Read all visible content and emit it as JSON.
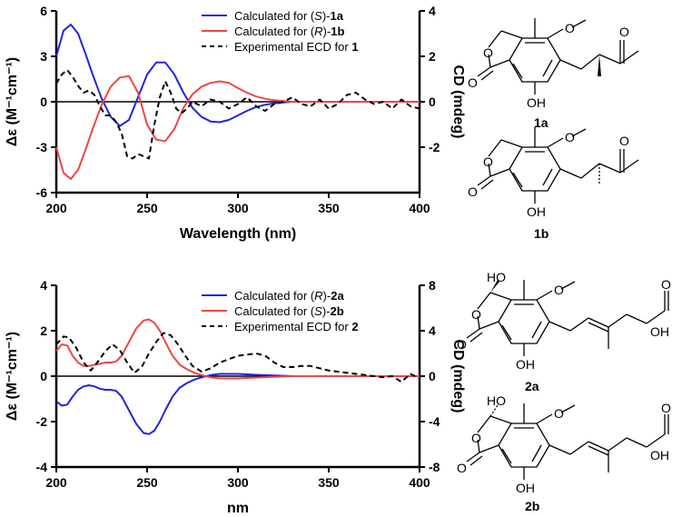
{
  "chart_data": [
    {
      "type": "line",
      "xlabel": "Wavelength  (nm)",
      "ylabel_left": "Δε (M⁻¹cm⁻¹)",
      "ylabel_right": "CD  (mdeg)",
      "xlim": [
        200,
        400
      ],
      "ylim_left": [
        -6,
        6
      ],
      "ylim_right": [
        -4,
        4
      ],
      "x_ticks": [
        200,
        250,
        300,
        350,
        400
      ],
      "y_ticks_left": [
        -6,
        -3,
        0,
        3,
        6
      ],
      "y_ticks_right": [
        -2,
        0,
        2,
        4
      ],
      "legend": {
        "placement": "top-center",
        "entries": [
          {
            "prefix": "Calculated for (",
            "italic": "S",
            "middle": ")-",
            "bold": "1a",
            "color": "#2323e0",
            "dash": "solid"
          },
          {
            "prefix": "Calculated for (",
            "italic": "R",
            "middle": ")-",
            "bold": "1b",
            "color": "#ee4545",
            "dash": "solid"
          },
          {
            "prefix": "Experimental ECD for ",
            "italic": "",
            "middle": "",
            "bold": "1",
            "color": "#000000",
            "dash": "dashed"
          }
        ]
      },
      "series": [
        {
          "name": "calc-S-1a",
          "axis": "left",
          "x": [
            200,
            204,
            208,
            212,
            216,
            220,
            225,
            230,
            235,
            240,
            245,
            250,
            255,
            260,
            265,
            270,
            275,
            280,
            285,
            290,
            295,
            300,
            305,
            310,
            315,
            320,
            325,
            330,
            335,
            340,
            350,
            360,
            370,
            380,
            390,
            400
          ],
          "y": [
            3.0,
            4.7,
            5.1,
            4.5,
            3.2,
            1.8,
            0.2,
            -1.0,
            -1.6,
            -1.2,
            0.3,
            1.8,
            2.6,
            2.6,
            1.8,
            0.6,
            -0.4,
            -1.0,
            -1.3,
            -1.35,
            -1.2,
            -0.9,
            -0.6,
            -0.35,
            -0.2,
            -0.1,
            -0.05,
            0,
            0,
            0,
            0,
            0,
            0,
            0,
            0,
            0
          ]
        },
        {
          "name": "calc-R-1b",
          "axis": "left",
          "x": [
            200,
            204,
            208,
            212,
            216,
            220,
            225,
            230,
            235,
            240,
            245,
            250,
            255,
            260,
            265,
            270,
            275,
            280,
            285,
            290,
            295,
            300,
            305,
            310,
            315,
            320,
            325,
            330,
            335,
            340,
            350,
            360,
            370,
            380,
            390,
            400
          ],
          "y": [
            -3.0,
            -4.7,
            -5.1,
            -4.5,
            -3.2,
            -1.8,
            -0.2,
            1.0,
            1.6,
            1.7,
            0.6,
            -1.5,
            -2.5,
            -2.6,
            -1.8,
            -0.4,
            0.5,
            1.0,
            1.25,
            1.35,
            1.25,
            0.9,
            0.6,
            0.35,
            0.2,
            0.1,
            0.05,
            0,
            0,
            0,
            0,
            0,
            0,
            0,
            0,
            0
          ]
        },
        {
          "name": "exp-ECD-1",
          "axis": "right",
          "x": [
            200,
            203,
            206,
            209,
            212,
            215,
            218,
            221,
            224,
            227,
            230,
            233,
            236,
            239,
            242,
            245,
            248,
            251,
            254,
            257,
            260,
            263,
            266,
            269,
            272,
            275,
            280,
            285,
            290,
            295,
            300,
            305,
            310,
            315,
            320,
            325,
            330,
            335,
            340,
            345,
            350,
            355,
            360,
            365,
            370,
            375,
            380,
            385,
            390,
            395,
            400
          ],
          "y": [
            0.8,
            1.2,
            1.4,
            1.1,
            0.7,
            0.4,
            0.5,
            0.3,
            -0.2,
            -0.6,
            -0.6,
            -0.9,
            -1.4,
            -2.4,
            -2.5,
            -2.3,
            -2.4,
            -2.5,
            -1.0,
            0.2,
            0.9,
            0.4,
            -0.3,
            -0.5,
            -0.3,
            0.0,
            -0.2,
            0.1,
            0.0,
            -0.3,
            -0.1,
            0.2,
            -0.2,
            -0.4,
            -0.1,
            0.0,
            0.2,
            -0.1,
            -0.2,
            0.1,
            -0.3,
            -0.1,
            0.3,
            0.4,
            0.1,
            -0.1,
            0.0,
            -0.3,
            0.1,
            -0.2,
            -0.3
          ]
        }
      ]
    },
    {
      "type": "line",
      "xlabel": "nm",
      "ylabel_left": "Δε (M⁻¹cm⁻¹)",
      "ylabel_right": "CD  (mdeg)",
      "xlim": [
        200,
        400
      ],
      "ylim_left": [
        -4,
        4
      ],
      "ylim_right": [
        -8,
        8
      ],
      "x_ticks": [
        200,
        250,
        300,
        350,
        400
      ],
      "y_ticks_left": [
        -4,
        -2,
        0,
        2,
        4
      ],
      "y_ticks_right": [
        -8,
        -4,
        0,
        4,
        8
      ],
      "legend": {
        "placement": "top-center",
        "entries": [
          {
            "prefix": "Calculated for (",
            "italic": "R",
            "middle": ")-",
            "bold": "2a",
            "color": "#2323e0",
            "dash": "solid"
          },
          {
            "prefix": "Calculated for (",
            "italic": "S",
            "middle": ")-",
            "bold": "2b",
            "color": "#ee4545",
            "dash": "solid"
          },
          {
            "prefix": "Experimental ECD for ",
            "italic": "",
            "middle": "",
            "bold": "2",
            "color": "#000000",
            "dash": "dashed"
          }
        ]
      },
      "series": [
        {
          "name": "calc-R-2a",
          "axis": "left",
          "x": [
            200,
            203,
            206,
            209,
            212,
            215,
            218,
            221,
            224,
            227,
            230,
            233,
            236,
            240,
            244,
            248,
            251,
            254,
            257,
            260,
            264,
            268,
            272,
            276,
            280,
            285,
            290,
            295,
            300,
            310,
            320,
            330,
            340,
            350,
            360,
            370,
            380,
            390,
            400
          ],
          "y": [
            -1.1,
            -1.3,
            -1.25,
            -0.9,
            -0.6,
            -0.45,
            -0.4,
            -0.45,
            -0.55,
            -0.6,
            -0.6,
            -0.65,
            -0.9,
            -1.5,
            -2.1,
            -2.5,
            -2.55,
            -2.4,
            -2.0,
            -1.5,
            -0.9,
            -0.5,
            -0.3,
            -0.15,
            -0.05,
            0.05,
            0.1,
            0.1,
            0.1,
            0.06,
            0.03,
            0.0,
            0,
            0,
            0,
            0,
            0,
            0,
            0
          ]
        },
        {
          "name": "calc-S-2b",
          "axis": "left",
          "x": [
            200,
            203,
            206,
            209,
            212,
            215,
            218,
            221,
            224,
            227,
            230,
            233,
            236,
            240,
            244,
            248,
            251,
            254,
            257,
            260,
            264,
            268,
            272,
            276,
            280,
            285,
            290,
            295,
            300,
            310,
            320,
            330,
            340,
            350,
            360,
            370,
            380,
            390,
            400
          ],
          "y": [
            1.1,
            1.4,
            1.35,
            0.9,
            0.6,
            0.45,
            0.45,
            0.5,
            0.55,
            0.6,
            0.6,
            0.65,
            0.9,
            1.5,
            2.1,
            2.45,
            2.5,
            2.35,
            2.0,
            1.5,
            0.9,
            0.5,
            0.3,
            0.15,
            0.05,
            -0.05,
            -0.1,
            -0.1,
            -0.1,
            -0.06,
            -0.03,
            0.0,
            0,
            0,
            0,
            0,
            0,
            0,
            0
          ]
        },
        {
          "name": "exp-ECD-2",
          "axis": "right",
          "x": [
            200,
            204,
            207,
            211,
            215,
            219,
            223,
            227,
            231,
            235,
            239,
            243,
            247,
            251,
            255,
            259,
            263,
            267,
            271,
            275,
            280,
            285,
            290,
            295,
            300,
            305,
            310,
            315,
            320,
            325,
            330,
            335,
            340,
            345,
            350,
            355,
            360,
            365,
            370,
            375,
            380,
            385,
            390,
            395,
            400
          ],
          "y": [
            2.8,
            3.5,
            3.4,
            2.5,
            1.2,
            0.5,
            1.3,
            2.2,
            2.8,
            2.3,
            1.2,
            0.3,
            0.8,
            2.0,
            3.0,
            3.8,
            3.6,
            2.8,
            1.8,
            0.9,
            0.4,
            0.7,
            1.2,
            1.5,
            1.8,
            1.9,
            2.0,
            1.8,
            1.2,
            0.8,
            0.8,
            0.9,
            0.9,
            0.7,
            0.5,
            0.4,
            0.3,
            0.2,
            0.1,
            0.0,
            -0.1,
            0.0,
            -0.5,
            0.2,
            -0.2
          ]
        }
      ]
    }
  ],
  "structures": [
    {
      "id": "1a",
      "label": "1a",
      "ome": "O",
      "me_label": "",
      "ketone_o": "O",
      "lactone_o": "O",
      "carbonyl_o": "O",
      "oh": "OH"
    },
    {
      "id": "1b",
      "label": "1b",
      "ome": "O",
      "me_label": "",
      "ketone_o": "O",
      "lactone_o": "O",
      "carbonyl_o": "O",
      "oh": "OH"
    },
    {
      "id": "2a",
      "label": "2a",
      "ome": "O",
      "ho": "HO",
      "lactone_o": "O",
      "carbonyl_o": "O",
      "oh": "OH",
      "acid_o": "O",
      "acid_oh": "OH"
    },
    {
      "id": "2b",
      "label": "2b",
      "ome": "O",
      "ho": "HO",
      "lactone_o": "O",
      "carbonyl_o": "O",
      "oh": "OH",
      "acid_o": "O",
      "acid_oh": "OH"
    }
  ]
}
